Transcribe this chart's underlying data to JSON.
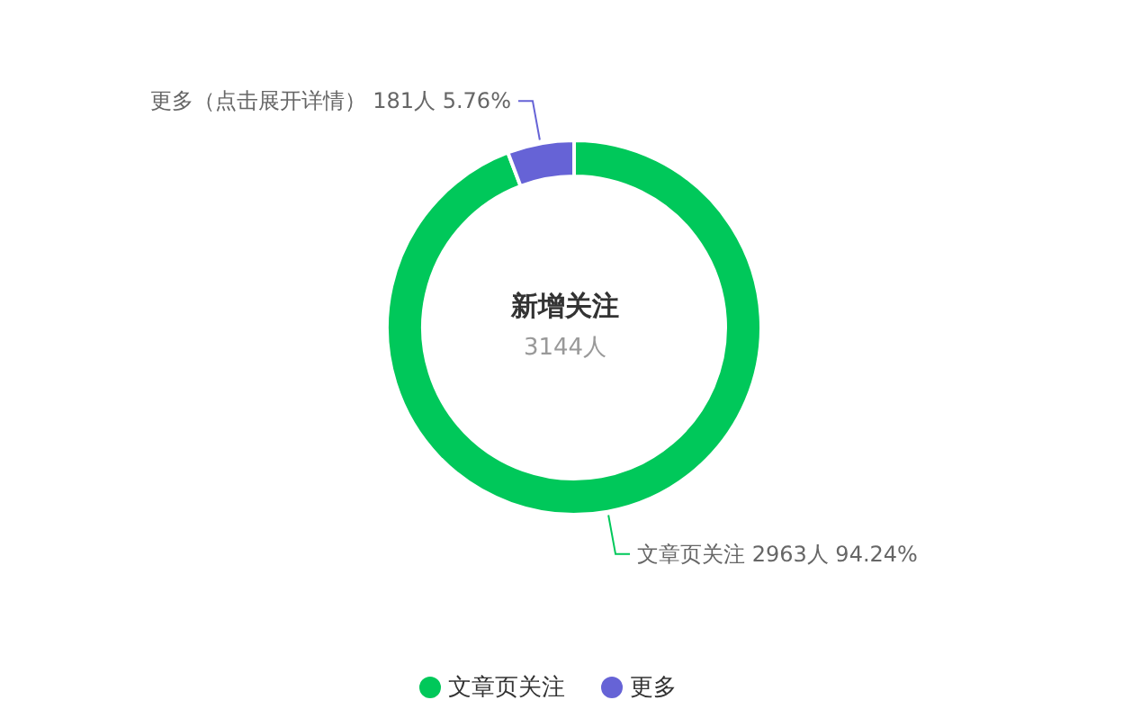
{
  "chart_data": {
    "type": "donut",
    "title": "新增关注",
    "subtitle": "3144人",
    "categories": [
      "文章页关注",
      "更多"
    ],
    "values": [
      2963,
      181
    ],
    "colors": [
      "#00c85a",
      "#6663d6"
    ],
    "value_labels": [
      "文章页关注 2963人 94.24%",
      "更多（点击展开详情） 181人 5.76%"
    ],
    "legend": "bottom"
  }
}
